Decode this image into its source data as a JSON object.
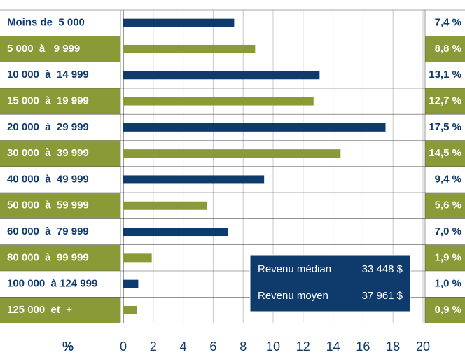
{
  "chart_data": {
    "type": "barh",
    "categories": [
      "Moins de  5 000",
      "5 000  à   9 999",
      "10 000  à  14 999",
      "15 000  à  19 999",
      "20 000  à  29 999",
      "30 000  à  39 999",
      "40 000  à  49 999",
      "50 000  à  59 999",
      "60 000  à  79 999",
      "80 000  à  99 999",
      "100 000  à 124 999",
      "125 000  et  +"
    ],
    "values": [
      7.4,
      8.8,
      13.1,
      12.7,
      17.5,
      14.5,
      9.4,
      5.6,
      7.0,
      1.9,
      1.0,
      0.9
    ],
    "value_labels": [
      "7,4 %",
      "8,8 %",
      "13,1 %",
      "12,7 %",
      "17,5 %",
      "14,5 %",
      "9,4 %",
      "5,6 %",
      "7,0 %",
      "1,9 %",
      "1,0 %",
      "0,9 %"
    ],
    "colors": [
      "#0e3a6c",
      "#8a9a36",
      "#0e3a6c",
      "#8a9a36",
      "#0e3a6c",
      "#8a9a36",
      "#0e3a6c",
      "#8a9a36",
      "#0e3a6c",
      "#8a9a36",
      "#0e3a6c",
      "#8a9a36"
    ],
    "x_label": "%",
    "xlim": [
      0,
      20
    ],
    "xticks": [
      0,
      2,
      4,
      6,
      8,
      10,
      12,
      14,
      16,
      18,
      20
    ],
    "grid": true,
    "annotations": [
      {
        "label": "Revenu médian",
        "value": "33 448 $"
      },
      {
        "label": "Revenu moyen",
        "value": "37 961 $"
      }
    ]
  }
}
